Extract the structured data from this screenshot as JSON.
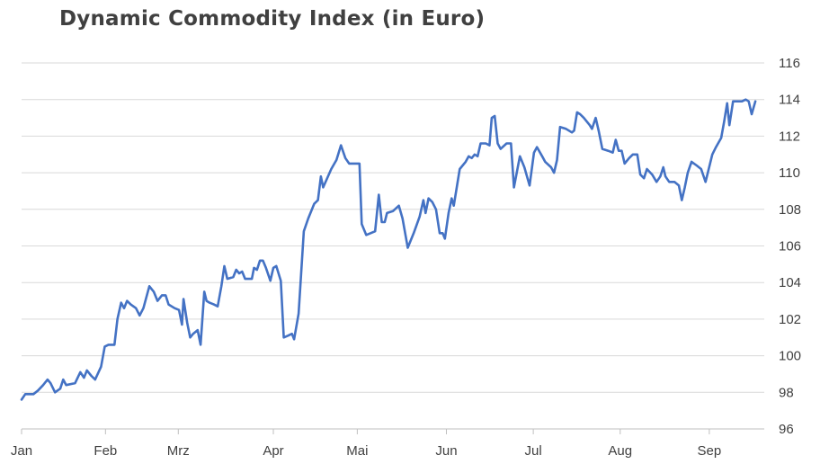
{
  "chart_data": {
    "type": "line",
    "title": "Dynamic Commodity Index (in Euro)",
    "xlabel": "",
    "ylabel": "",
    "ylim": [
      96,
      116
    ],
    "yticks": [
      96,
      98,
      100,
      102,
      104,
      106,
      108,
      110,
      112,
      114,
      116
    ],
    "ytick_labels": [
      "96",
      "98",
      "100",
      "102",
      "104",
      "106",
      "108",
      "110",
      "112",
      "114",
      "116"
    ],
    "y_axis_position": "right",
    "grid": true,
    "xticks": [
      0,
      0.113,
      0.211,
      0.339,
      0.452,
      0.572,
      0.689,
      0.806,
      0.926
    ],
    "xtick_labels": [
      "Jan",
      "Feb",
      "Mrz",
      "Apr",
      "Mai",
      "Jun",
      "Jul",
      "Aug",
      "Sep"
    ],
    "line_color": "#4472c4",
    "series": [
      {
        "values": [
          [
            0.0,
            97.6
          ],
          [
            0.005,
            97.9
          ],
          [
            0.016,
            97.9
          ],
          [
            0.022,
            98.1
          ],
          [
            0.029,
            98.4
          ],
          [
            0.035,
            98.7
          ],
          [
            0.039,
            98.5
          ],
          [
            0.045,
            98.0
          ],
          [
            0.052,
            98.2
          ],
          [
            0.056,
            98.7
          ],
          [
            0.06,
            98.4
          ],
          [
            0.072,
            98.5
          ],
          [
            0.079,
            99.1
          ],
          [
            0.084,
            98.8
          ],
          [
            0.088,
            99.2
          ],
          [
            0.094,
            98.9
          ],
          [
            0.099,
            98.7
          ],
          [
            0.107,
            99.4
          ],
          [
            0.112,
            100.5
          ],
          [
            0.117,
            100.6
          ],
          [
            0.125,
            100.6
          ],
          [
            0.129,
            102.0
          ],
          [
            0.134,
            102.9
          ],
          [
            0.138,
            102.6
          ],
          [
            0.142,
            103.0
          ],
          [
            0.147,
            102.8
          ],
          [
            0.154,
            102.6
          ],
          [
            0.159,
            102.2
          ],
          [
            0.164,
            102.6
          ],
          [
            0.172,
            103.8
          ],
          [
            0.178,
            103.5
          ],
          [
            0.183,
            103.0
          ],
          [
            0.189,
            103.3
          ],
          [
            0.194,
            103.3
          ],
          [
            0.198,
            102.8
          ],
          [
            0.206,
            102.6
          ],
          [
            0.212,
            102.5
          ],
          [
            0.216,
            101.7
          ],
          [
            0.218,
            103.1
          ],
          [
            0.223,
            101.8
          ],
          [
            0.227,
            101.0
          ],
          [
            0.231,
            101.2
          ],
          [
            0.237,
            101.4
          ],
          [
            0.241,
            100.6
          ],
          [
            0.246,
            103.5
          ],
          [
            0.249,
            103.0
          ],
          [
            0.253,
            102.9
          ],
          [
            0.259,
            102.8
          ],
          [
            0.264,
            102.7
          ],
          [
            0.269,
            103.8
          ],
          [
            0.273,
            104.9
          ],
          [
            0.277,
            104.2
          ],
          [
            0.285,
            104.3
          ],
          [
            0.289,
            104.7
          ],
          [
            0.293,
            104.5
          ],
          [
            0.297,
            104.6
          ],
          [
            0.301,
            104.2
          ],
          [
            0.31,
            104.2
          ],
          [
            0.313,
            104.8
          ],
          [
            0.317,
            104.7
          ],
          [
            0.321,
            105.2
          ],
          [
            0.325,
            105.2
          ],
          [
            0.329,
            104.8
          ],
          [
            0.335,
            104.1
          ],
          [
            0.339,
            104.8
          ],
          [
            0.343,
            104.9
          ],
          [
            0.349,
            104.1
          ],
          [
            0.353,
            101.0
          ],
          [
            0.359,
            101.1
          ],
          [
            0.364,
            101.2
          ],
          [
            0.367,
            100.9
          ],
          [
            0.373,
            102.3
          ],
          [
            0.38,
            106.8
          ],
          [
            0.386,
            107.5
          ],
          [
            0.394,
            108.3
          ],
          [
            0.399,
            108.5
          ],
          [
            0.403,
            109.8
          ],
          [
            0.406,
            109.2
          ],
          [
            0.417,
            110.2
          ],
          [
            0.424,
            110.7
          ],
          [
            0.43,
            111.5
          ],
          [
            0.436,
            110.8
          ],
          [
            0.441,
            110.5
          ],
          [
            0.455,
            110.5
          ],
          [
            0.458,
            107.2
          ],
          [
            0.464,
            106.6
          ],
          [
            0.47,
            106.7
          ],
          [
            0.476,
            106.8
          ],
          [
            0.481,
            108.8
          ],
          [
            0.485,
            107.3
          ],
          [
            0.489,
            107.3
          ],
          [
            0.492,
            107.8
          ],
          [
            0.5,
            107.9
          ],
          [
            0.508,
            108.2
          ],
          [
            0.513,
            107.5
          ],
          [
            0.52,
            105.9
          ],
          [
            0.528,
            106.7
          ],
          [
            0.536,
            107.6
          ],
          [
            0.541,
            108.5
          ],
          [
            0.544,
            107.8
          ],
          [
            0.548,
            108.6
          ],
          [
            0.553,
            108.4
          ],
          [
            0.558,
            108.0
          ],
          [
            0.563,
            106.7
          ],
          [
            0.567,
            106.7
          ],
          [
            0.57,
            106.4
          ],
          [
            0.575,
            107.8
          ],
          [
            0.579,
            108.6
          ],
          [
            0.582,
            108.2
          ],
          [
            0.59,
            110.2
          ],
          [
            0.598,
            110.6
          ],
          [
            0.602,
            110.9
          ],
          [
            0.606,
            110.8
          ],
          [
            0.61,
            111.0
          ],
          [
            0.614,
            110.9
          ],
          [
            0.618,
            111.6
          ],
          [
            0.625,
            111.6
          ],
          [
            0.63,
            111.5
          ],
          [
            0.633,
            113.0
          ],
          [
            0.637,
            113.1
          ],
          [
            0.641,
            111.6
          ],
          [
            0.645,
            111.3
          ],
          [
            0.653,
            111.6
          ],
          [
            0.659,
            111.6
          ],
          [
            0.663,
            109.2
          ],
          [
            0.671,
            110.9
          ],
          [
            0.677,
            110.3
          ],
          [
            0.684,
            109.3
          ],
          [
            0.69,
            111.1
          ],
          [
            0.694,
            111.4
          ],
          [
            0.701,
            110.9
          ],
          [
            0.705,
            110.6
          ],
          [
            0.713,
            110.3
          ],
          [
            0.717,
            110.0
          ],
          [
            0.721,
            110.7
          ],
          [
            0.725,
            112.5
          ],
          [
            0.733,
            112.4
          ],
          [
            0.741,
            112.2
          ],
          [
            0.744,
            112.3
          ],
          [
            0.748,
            113.3
          ],
          [
            0.752,
            113.2
          ],
          [
            0.757,
            113.0
          ],
          [
            0.765,
            112.6
          ],
          [
            0.768,
            112.4
          ],
          [
            0.773,
            113.0
          ],
          [
            0.777,
            112.3
          ],
          [
            0.782,
            111.3
          ],
          [
            0.79,
            111.2
          ],
          [
            0.796,
            111.1
          ],
          [
            0.8,
            111.8
          ],
          [
            0.804,
            111.2
          ],
          [
            0.808,
            111.2
          ],
          [
            0.812,
            110.5
          ],
          [
            0.818,
            110.8
          ],
          [
            0.823,
            111.0
          ],
          [
            0.829,
            111.0
          ],
          [
            0.833,
            109.9
          ],
          [
            0.838,
            109.7
          ],
          [
            0.842,
            110.2
          ],
          [
            0.849,
            109.9
          ],
          [
            0.855,
            109.5
          ],
          [
            0.86,
            109.8
          ],
          [
            0.864,
            110.3
          ],
          [
            0.867,
            109.8
          ],
          [
            0.872,
            109.5
          ],
          [
            0.879,
            109.5
          ],
          [
            0.885,
            109.3
          ],
          [
            0.889,
            108.5
          ],
          [
            0.893,
            109.2
          ],
          [
            0.897,
            110.0
          ],
          [
            0.902,
            110.6
          ],
          [
            0.909,
            110.4
          ],
          [
            0.915,
            110.2
          ],
          [
            0.921,
            109.5
          ],
          [
            0.93,
            111.0
          ],
          [
            0.935,
            111.4
          ],
          [
            0.942,
            111.9
          ],
          [
            0.946,
            112.8
          ],
          [
            0.95,
            113.8
          ],
          [
            0.953,
            112.6
          ],
          [
            0.958,
            113.9
          ],
          [
            0.964,
            113.9
          ],
          [
            0.97,
            113.9
          ],
          [
            0.975,
            114.0
          ],
          [
            0.979,
            113.9
          ],
          [
            0.983,
            113.2
          ],
          [
            0.988,
            113.9
          ]
        ]
      }
    ]
  }
}
